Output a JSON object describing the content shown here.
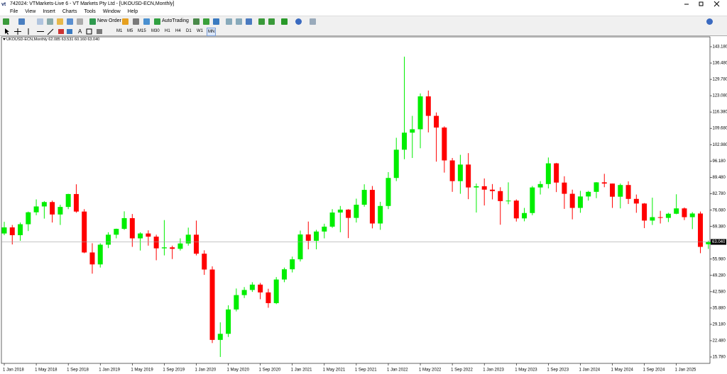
{
  "window": {
    "title": "742024: VTMarkets-Live 6 - VT Markets Pty Ltd - [UKOUSD-ECN,Monthly]"
  },
  "menu": [
    "File",
    "View",
    "Insert",
    "Charts",
    "Tools",
    "Window",
    "Help"
  ],
  "toolbar": {
    "new_order": "New Order",
    "auto_trading": "AutoTrading",
    "timeframes": [
      "M1",
      "M5",
      "M15",
      "M30",
      "H1",
      "H4",
      "D1",
      "W1",
      "MN"
    ]
  },
  "chart_data": {
    "type": "candlestick",
    "symbol": "UKOUSD-ECN,Monthly",
    "ohlc_labels": {
      "open": "62.085",
      "high": "63.531",
      "low": "60.160",
      "close": "63.040"
    },
    "up_color": "#00ee00",
    "down_color": "#ff0000",
    "categories": [
      "1 Jan 2018",
      null,
      null,
      null,
      "1 May 2018",
      null,
      null,
      null,
      "1 Sep 2018",
      null,
      null,
      null,
      "1 Jan 2019",
      null,
      null,
      null,
      "1 May 2019",
      null,
      null,
      null,
      "1 Sep 2019",
      null,
      null,
      null,
      "1 Jan 2020",
      null,
      null,
      null,
      "1 May 2020",
      null,
      null,
      null,
      "1 Sep 2020",
      null,
      null,
      null,
      "1 Jan 2021",
      null,
      null,
      null,
      "1 May 2021",
      null,
      null,
      null,
      "1 Sep 2021",
      null,
      null,
      null,
      "1 Jan 2022",
      null,
      null,
      null,
      "1 May 2022",
      null,
      null,
      null,
      "1 Sep 2022",
      null,
      null,
      null,
      "1 Jan 2023",
      null,
      null,
      null,
      "1 May 2023",
      null,
      null,
      null,
      "1 Sep 2023",
      null,
      null,
      null,
      "1 Jan 2024",
      null,
      null,
      null,
      "1 May 2024",
      null,
      null,
      null,
      "1 Sep 2024",
      null,
      null,
      null,
      "1 Jan 2025",
      null,
      null,
      null,
      null
    ],
    "open": [
      66.5,
      69.0,
      65.8,
      70.3,
      75.2,
      77.6,
      79.4,
      74.3,
      77.4,
      82.7,
      75.5,
      58.7,
      53.8,
      61.9,
      66.0,
      68.4,
      72.8,
      64.5,
      66.5,
      65.2,
      60.4,
      60.8,
      60.2,
      62.4,
      66.0,
      58.2,
      51.7,
      22.8,
      25.3,
      35.3,
      41.2,
      43.3,
      45.5,
      42.3,
      37.9,
      47.6,
      51.8,
      55.9,
      66.1,
      63.5,
      67.3,
      69.3,
      75.1,
      76.3,
      72.9,
      78.3,
      84.4,
      70.6,
      77.8,
      89.3,
      100.9,
      107.9,
      109.3,
      122.8,
      114.8,
      110.0,
      96.5,
      88.0,
      94.8,
      85.4,
      85.9,
      84.5,
      83.9,
      79.8,
      80.0,
      72.7,
      74.9,
      85.4,
      86.8,
      95.3,
      87.4,
      82.8,
      77.0,
      81.7,
      83.6,
      87.5,
      87.0,
      81.6,
      86.4,
      80.7,
      78.8,
      71.8,
      73.2,
      72.9,
      74.6,
      76.8,
      73.2,
      74.7,
      62.085
    ],
    "high": [
      71.3,
      70.0,
      71.0,
      75.5,
      80.5,
      79.8,
      80.0,
      78.3,
      82.8,
      86.7,
      76.5,
      62.5,
      62.5,
      67.0,
      68.5,
      75.6,
      74.5,
      67.0,
      67.8,
      66.0,
      72.0,
      61.5,
      64.5,
      68.9,
      71.8,
      59.6,
      53.0,
      30.0,
      37.0,
      43.9,
      44.5,
      46.5,
      46.2,
      43.8,
      48.6,
      52.5,
      57.0,
      67.7,
      71.4,
      68.0,
      70.5,
      76.5,
      77.8,
      76.5,
      80.8,
      86.7,
      86.0,
      79.5,
      91.7,
      105.8,
      139.1,
      114.8,
      124.0,
      125.2,
      116.2,
      110.5,
      97.5,
      98.8,
      99.5,
      87.0,
      89.1,
      86.8,
      85.5,
      87.5,
      80.5,
      77.0,
      86.0,
      88.0,
      97.7,
      95.5,
      90.0,
      84.5,
      84.0,
      84.0,
      87.6,
      91.0,
      87.0,
      87.0,
      87.9,
      82.5,
      79.0,
      81.2,
      75.8,
      75.0,
      82.6,
      77.2,
      75.3,
      75.5,
      63.531
    ],
    "low": [
      65.8,
      62.0,
      63.5,
      67.5,
      74.0,
      72.6,
      71.0,
      70.0,
      76.5,
      75.0,
      58.4,
      50.0,
      52.5,
      60.5,
      64.5,
      68.0,
      61.0,
      59.5,
      61.5,
      55.5,
      57.5,
      56.0,
      59.5,
      61.5,
      57.5,
      49.5,
      21.5,
      15.8,
      24.0,
      34.5,
      40.0,
      42.5,
      39.5,
      36.0,
      37.5,
      46.5,
      50.5,
      55.0,
      60.0,
      60.0,
      64.5,
      68.8,
      67.0,
      64.6,
      71.0,
      77.5,
      68.6,
      68.0,
      76.5,
      88.0,
      97.0,
      97.5,
      101.5,
      108.0,
      96.0,
      91.5,
      83.6,
      82.8,
      80.6,
      75.1,
      78.0,
      80.5,
      70.1,
      78.5,
      71.4,
      71.5,
      74.0,
      82.5,
      85.0,
      83.5,
      76.6,
      72.3,
      75.0,
      80.0,
      81.0,
      85.5,
      77.0,
      76.8,
      78.6,
      75.0,
      68.7,
      70.0,
      70.6,
      71.2,
      74.4,
      72.0,
      68.3,
      58.4,
      60.16
    ],
    "close": [
      69.0,
      65.8,
      70.3,
      75.2,
      77.6,
      79.4,
      74.3,
      77.4,
      82.7,
      75.5,
      58.7,
      53.8,
      61.9,
      66.0,
      68.4,
      72.8,
      64.5,
      66.5,
      65.2,
      60.4,
      60.8,
      60.2,
      62.4,
      66.0,
      58.2,
      51.7,
      22.8,
      25.3,
      35.3,
      41.2,
      43.3,
      45.5,
      42.3,
      37.9,
      47.6,
      51.8,
      55.9,
      66.1,
      63.5,
      67.3,
      69.3,
      75.1,
      76.3,
      72.9,
      78.3,
      84.4,
      70.6,
      77.8,
      89.3,
      100.9,
      107.9,
      109.3,
      122.8,
      114.8,
      110.0,
      96.5,
      88.0,
      94.8,
      85.4,
      85.9,
      84.5,
      83.9,
      79.8,
      80.0,
      72.7,
      74.9,
      85.4,
      86.8,
      95.3,
      87.4,
      82.8,
      77.0,
      81.7,
      83.6,
      87.5,
      87.0,
      81.6,
      86.4,
      80.7,
      78.8,
      71.8,
      73.2,
      72.9,
      74.6,
      76.8,
      73.2,
      74.7,
      61.0,
      63.04
    ],
    "ylim": [
      12.87,
      147.25
    ],
    "yticks": [
      {
        "value": 143.18,
        "label": "143.180"
      },
      {
        "value": 136.48,
        "label": "136.480"
      },
      {
        "value": 129.78,
        "label": "129.780"
      },
      {
        "value": 123.08,
        "label": "123.080"
      },
      {
        "value": 116.38,
        "label": "116.380"
      },
      {
        "value": 109.68,
        "label": "109.680"
      },
      {
        "value": 102.98,
        "label": "102.980"
      },
      {
        "value": 96.18,
        "label": "96.180"
      },
      {
        "value": 89.48,
        "label": "89.480"
      },
      {
        "value": 82.78,
        "label": "82.780"
      },
      {
        "value": 76.08,
        "label": "76.080"
      },
      {
        "value": 69.38,
        "label": "69.380"
      },
      {
        "value": 55.98,
        "label": "55.980"
      },
      {
        "value": 49.28,
        "label": "49.280"
      },
      {
        "value": 42.58,
        "label": "42.580"
      },
      {
        "value": 35.88,
        "label": "35.880"
      },
      {
        "value": 29.18,
        "label": "29.180"
      },
      {
        "value": 22.48,
        "label": "22.480"
      },
      {
        "value": 15.78,
        "label": "15.780"
      }
    ]
  }
}
